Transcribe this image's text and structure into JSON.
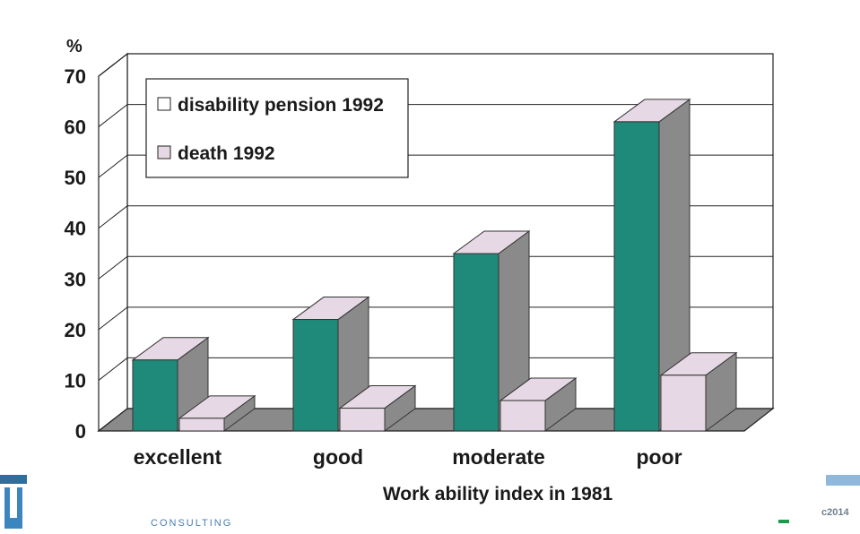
{
  "chart_data": {
    "type": "bar",
    "unit_label": "%",
    "xlabel": "Work ability index in 1981",
    "categories": [
      "excellent",
      "good",
      "moderate",
      "poor"
    ],
    "series": [
      {
        "name": "disability pension 1992",
        "values": [
          14,
          22,
          35,
          61
        ],
        "color": "#1f8a7a"
      },
      {
        "name": "death 1992",
        "values": [
          2.5,
          4.5,
          6,
          11
        ],
        "color": "#e6d8e4"
      }
    ],
    "ylim": [
      0,
      70
    ],
    "yticks": [
      "0",
      "10",
      "20",
      "30",
      "40",
      "50",
      "60",
      "70"
    ],
    "grid": true,
    "legend_position": "top-left",
    "colors": {
      "wall": "#ffffff",
      "floor": "#8a8a8a",
      "bar_side": "#8a8a8a",
      "bar_top": "#e6d8e4",
      "grid": "#222222"
    }
  },
  "footer": {
    "brand_text": "CONSULTING",
    "copyright_text": "c2014"
  }
}
